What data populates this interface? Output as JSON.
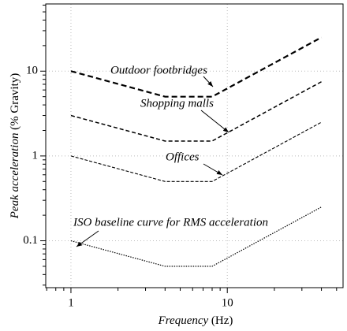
{
  "chart_data": {
    "type": "line",
    "log_x": true,
    "log_y": true,
    "grid": true,
    "xlabel": "Frequency",
    "xlabel_unit": "(Hz)",
    "ylabel": "Peak acceleration",
    "ylabel_unit": "(% Gravity)",
    "x": [
      1,
      4,
      8,
      40
    ],
    "series": [
      {
        "name": "Outdoor footbridges",
        "color": "#000000",
        "style": "bold-dashed",
        "values": [
          10,
          5,
          5,
          25
        ]
      },
      {
        "name": "Shopping malls",
        "color": "#000000",
        "style": "dashed",
        "values": [
          3,
          1.5,
          1.5,
          7.5
        ]
      },
      {
        "name": "Offices",
        "color": "#000000",
        "style": "fine-dashed",
        "values": [
          1,
          0.5,
          0.5,
          2.5
        ]
      },
      {
        "name": "ISO baseline curve for RMS acceleration",
        "color": "#000000",
        "style": "dotted",
        "values": [
          0.1,
          0.05,
          0.05,
          0.25
        ]
      }
    ],
    "xlim": [
      0.69,
      55
    ],
    "ylim": [
      0.028,
      62
    ],
    "xticks": [
      1,
      10
    ],
    "yticks": [
      0.1,
      1,
      10
    ],
    "xticks_minor": [
      0.7,
      0.8,
      0.9,
      2,
      3,
      4,
      5,
      6,
      7,
      8,
      9,
      20,
      30,
      40,
      50
    ],
    "yticks_minor": [
      0.03,
      0.04,
      0.05,
      0.06,
      0.07,
      0.08,
      0.09,
      0.2,
      0.3,
      0.4,
      0.5,
      0.6,
      0.7,
      0.8,
      0.9,
      2,
      3,
      4,
      5,
      6,
      7,
      8,
      9,
      20,
      30,
      40,
      50,
      60
    ]
  }
}
